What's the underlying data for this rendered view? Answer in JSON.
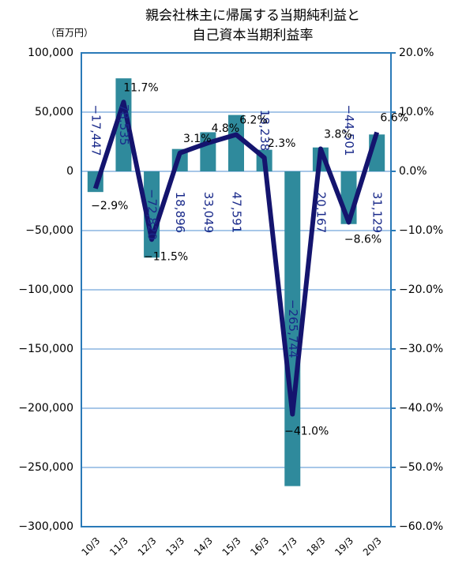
{
  "chart_data": {
    "type": "combo",
    "title": [
      "親会社株主に帰属する当期純利益と",
      "自己資本当期利益率"
    ],
    "y_label": "（百万円）",
    "categories": [
      "10/3",
      "11/3",
      "12/3",
      "13/3",
      "14/3",
      "15/3",
      "16/3",
      "17/3",
      "18/3",
      "19/3",
      "20/3"
    ],
    "series": [
      {
        "type": "bar",
        "color": "#2f8a9c",
        "axis": "y",
        "values": [
          -17447,
          78535,
          -72820,
          18896,
          33049,
          47591,
          18238,
          -265744,
          20167,
          -44501,
          31129
        ],
        "value_labels": [
          "−17,447",
          "78,535",
          "−72,820",
          "18,896",
          "33,049",
          "47,591",
          "18,238",
          "−265,744",
          "20,167",
          "−44,501",
          "31,129"
        ]
      },
      {
        "type": "line",
        "color": "#14146e",
        "axis": "y2",
        "values": [
          -2.9,
          11.7,
          -11.5,
          3.1,
          4.8,
          6.2,
          2.3,
          -41.0,
          3.8,
          -8.6,
          6.6
        ],
        "value_labels": [
          "−2.9%",
          "11.7%",
          "−11.5%",
          "3.1%",
          "4.8%",
          "6.2%",
          "2.3%",
          "−41.0%",
          "3.8%",
          "−8.6%",
          "6.6%"
        ]
      }
    ],
    "ylim": [
      -300000,
      100000
    ],
    "yticks": [
      {
        "value": 100000,
        "label": "100,000"
      },
      {
        "value": 50000,
        "label": "50,000"
      },
      0,
      {
        "value": -50000,
        "label": "−50,000"
      },
      {
        "value": -100000,
        "label": "−100,000"
      },
      {
        "value": -150000,
        "label": "−150,000"
      },
      {
        "value": -200000,
        "label": "−200,000"
      },
      {
        "value": -250000,
        "label": "−250,000"
      },
      {
        "value": -300000,
        "label": "−300,000"
      }
    ],
    "y2lim": [
      -60,
      20
    ],
    "y2ticks": [
      {
        "value": 20,
        "label": "20.0%"
      },
      {
        "value": 10,
        "label": "10.0%"
      },
      {
        "value": 0,
        "label": "0.0%"
      },
      {
        "value": -10,
        "label": "−10.0%"
      },
      {
        "value": -20,
        "label": "−20.0%"
      },
      {
        "value": -30,
        "label": "−30.0%"
      },
      {
        "value": -40,
        "label": "−40.0%"
      },
      {
        "value": -50,
        "label": "−50.0%"
      },
      {
        "value": -60,
        "label": "−60.0%"
      }
    ],
    "grid": true
  }
}
